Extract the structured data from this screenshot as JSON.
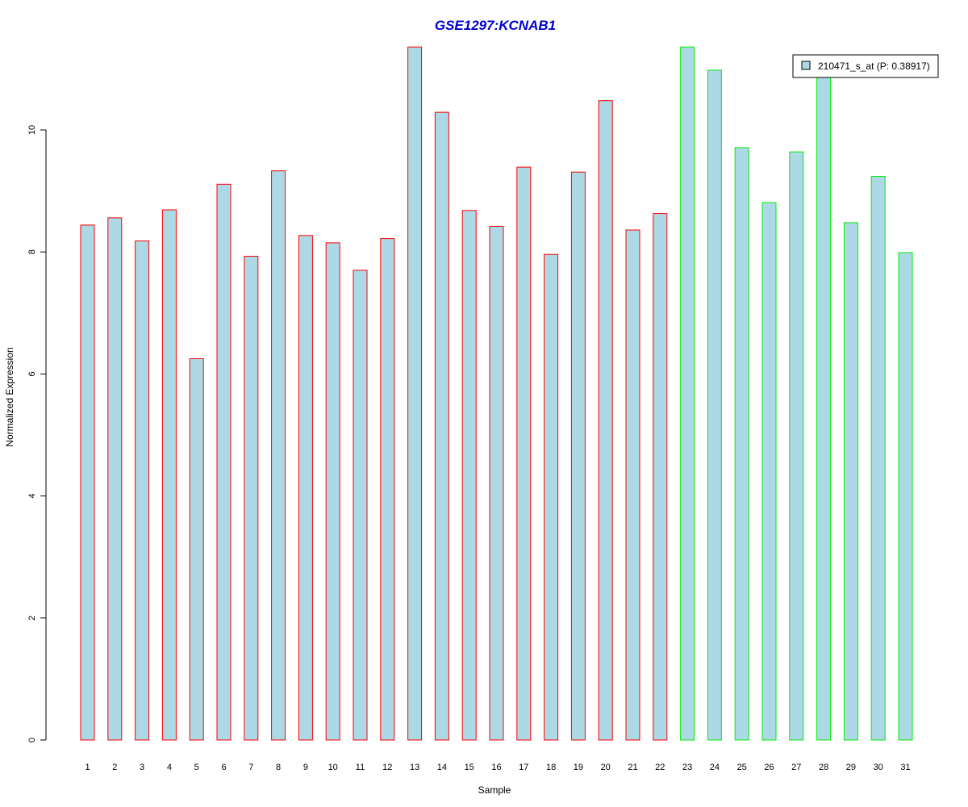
{
  "chart_data": {
    "type": "bar",
    "title": "GSE1297:KCNAB1",
    "xlabel": "Sample",
    "ylabel": "Normalized Expression",
    "ylim": [
      0,
      11.4
    ],
    "yticks": [
      0,
      2,
      4,
      6,
      8,
      10
    ],
    "categories": [
      "1",
      "2",
      "3",
      "4",
      "5",
      "6",
      "7",
      "8",
      "9",
      "10",
      "11",
      "12",
      "13",
      "14",
      "15",
      "16",
      "17",
      "18",
      "19",
      "20",
      "21",
      "22",
      "23",
      "24",
      "25",
      "26",
      "27",
      "28",
      "29",
      "30",
      "31"
    ],
    "series": [
      {
        "name": "210471_s_at (P: 0.38917)",
        "values": [
          8.44,
          8.56,
          8.18,
          8.69,
          6.25,
          9.11,
          7.93,
          9.33,
          8.27,
          8.15,
          7.7,
          8.22,
          11.36,
          10.29,
          8.68,
          8.42,
          9.39,
          7.96,
          9.31,
          10.48,
          8.36,
          8.63,
          11.36,
          10.98,
          9.71,
          8.81,
          9.64,
          10.98,
          8.48,
          9.24,
          7.99
        ]
      }
    ],
    "groups": [
      {
        "from": 1,
        "to": 22,
        "border_color": "#ff0000"
      },
      {
        "from": 23,
        "to": 31,
        "border_color": "#00ee00"
      }
    ],
    "bar_fill": "#add8e6",
    "title_color": "#0000cc",
    "legend": {
      "label": "210471_s_at (P: 0.38917)",
      "placement": "top-right"
    },
    "grid": false
  }
}
